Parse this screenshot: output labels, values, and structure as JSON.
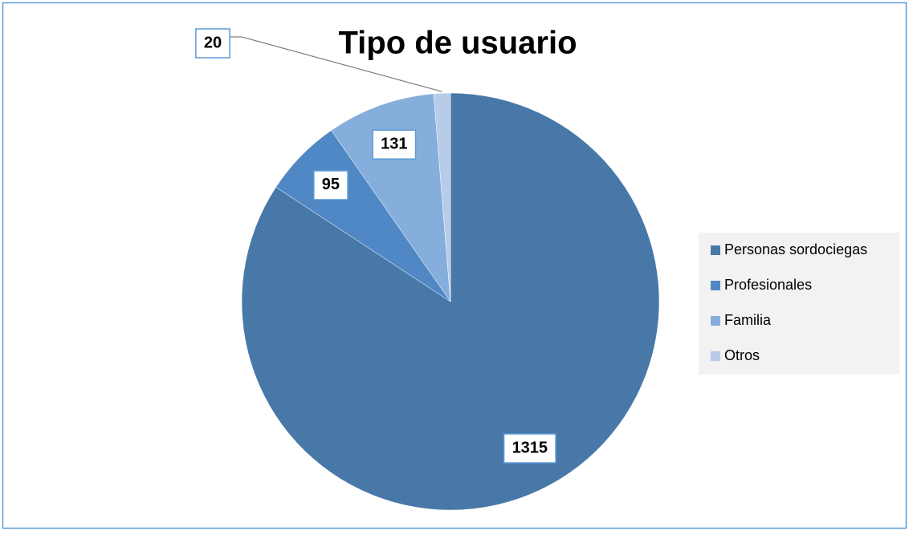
{
  "chart_data": {
    "type": "pie",
    "title": "Tipo de usuario",
    "categories": [
      "Personas sordociegas",
      "Profesionales",
      "Familia",
      "Otros"
    ],
    "values": [
      1315,
      95,
      131,
      20
    ],
    "colors": [
      "#4878a8",
      "#5088c5",
      "#86aedc",
      "#b6cce8"
    ],
    "legend": "right"
  }
}
